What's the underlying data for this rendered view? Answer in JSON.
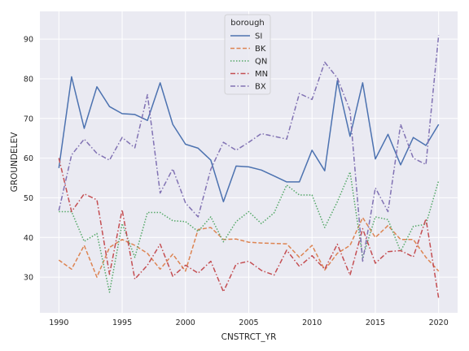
{
  "chart_data": {
    "type": "line",
    "title": "",
    "xlabel": "CNSTRCT_YR",
    "ylabel": "GROUNDELEV",
    "xlim": [
      1988.5,
      2021.5
    ],
    "ylim": [
      21,
      97
    ],
    "xticks": [
      1990,
      1995,
      2000,
      2005,
      2010,
      2015,
      2020
    ],
    "yticks": [
      30,
      40,
      50,
      60,
      70,
      80,
      90
    ],
    "grid": true,
    "legend": {
      "title": "borough",
      "placement": "upper-center"
    },
    "x": [
      1990,
      1991,
      1992,
      1993,
      1994,
      1995,
      1996,
      1997,
      1998,
      1999,
      2000,
      2001,
      2002,
      2003,
      2004,
      2005,
      2006,
      2007,
      2008,
      2009,
      2010,
      2011,
      2012,
      2013,
      2014,
      2015,
      2016,
      2017,
      2018,
      2019,
      2020
    ],
    "series": [
      {
        "name": "SI",
        "color": "#4c72b0",
        "dash": "solid",
        "values": [
          57.5,
          80.5,
          67.5,
          78,
          73,
          71.2,
          71,
          69.5,
          79,
          68.5,
          63.5,
          62.5,
          59.5,
          49,
          58,
          57.8,
          57,
          55.5,
          54,
          54,
          62,
          56.8,
          79.5,
          65.5,
          79,
          59.8,
          66,
          58.3,
          65.2,
          63.2,
          68.5
        ]
      },
      {
        "name": "BK",
        "color": "#dd8452",
        "dash": "dashed",
        "values": [
          34.3,
          32,
          38,
          30,
          37.5,
          39.5,
          38,
          36,
          32,
          35.8,
          31.5,
          42,
          42.5,
          39.5,
          39.6,
          38.8,
          38.6,
          38.5,
          38.4,
          35,
          38,
          31.8,
          36,
          38,
          45,
          40,
          43,
          39.5,
          39.5,
          35,
          31.5
        ]
      },
      {
        "name": "QN",
        "color": "#55a868",
        "dash": "dotted",
        "values": [
          46.5,
          46.5,
          39,
          41,
          26.2,
          43.5,
          35,
          46.3,
          46.3,
          44.2,
          44,
          41.5,
          45.2,
          38.9,
          44,
          46.5,
          43.5,
          46.2,
          53.2,
          50.7,
          50.7,
          42.5,
          49,
          56.5,
          35,
          45.2,
          44.5,
          36.5,
          42.8,
          43.3,
          54.3
        ]
      },
      {
        "name": "MN",
        "color": "#c44e52",
        "dash": "dashdot",
        "values": [
          60,
          46.5,
          51,
          49.5,
          30.7,
          47,
          29.5,
          33,
          38.3,
          30.2,
          33,
          31,
          34,
          26.3,
          33.3,
          34,
          31.7,
          30.5,
          36.8,
          32.7,
          35.4,
          32,
          38.3,
          30.5,
          42.2,
          33.5,
          36.4,
          36.7,
          35.1,
          44.7,
          24.7
        ]
      },
      {
        "name": "BX",
        "color": "#8172b3",
        "dash": "dashdot",
        "values": [
          46.8,
          60.8,
          64.8,
          61.2,
          59.5,
          65.2,
          62.6,
          76,
          51.2,
          57.3,
          48.7,
          45.2,
          57.2,
          64,
          62,
          64,
          66.2,
          65.5,
          64.8,
          76.3,
          74.8,
          84.2,
          80.2,
          72,
          34,
          52.5,
          46.5,
          68.5,
          60,
          58.4,
          91
        ]
      }
    ]
  }
}
